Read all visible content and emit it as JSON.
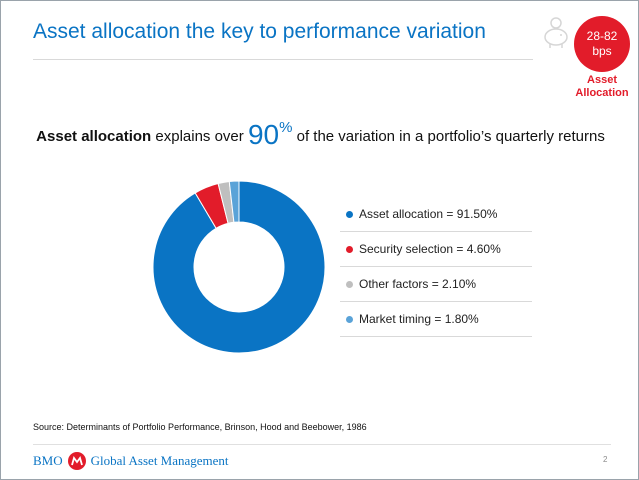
{
  "title": "Asset allocation the key to performance variation",
  "badge": {
    "line1": "28-82",
    "line2": "bps",
    "caption_line1": "Asset",
    "caption_line2": "Allocation"
  },
  "headline": {
    "bold_part": "Asset allocation",
    "mid_part": " explains over ",
    "big_number": "90",
    "superscript": "%",
    "end_part": " of the variation in a portfolio’s quarterly returns"
  },
  "chart_data": {
    "type": "pie",
    "title": "",
    "slices": [
      {
        "label": "Asset allocation = 91.50%",
        "value": 91.5,
        "color": "#0a74c4"
      },
      {
        "label": "Security selection = 4.60%",
        "value": 4.6,
        "color": "#e21c2a"
      },
      {
        "label": "Other factors = 2.10%",
        "value": 2.1,
        "color": "#bfbfbf"
      },
      {
        "label": "Market timing = 1.80%",
        "value": 1.8,
        "color": "#5aa3d8"
      }
    ],
    "donut": true,
    "legend_position": "right"
  },
  "source": "Source: Determinants of Portfolio Performance, Brinson, Hood and Beebower, 1986",
  "footer": {
    "brand": "BMO",
    "company": "Global Asset Management",
    "page": "2"
  },
  "colors": {
    "accent": "#0a74c4",
    "brand_red": "#e21c2a"
  }
}
